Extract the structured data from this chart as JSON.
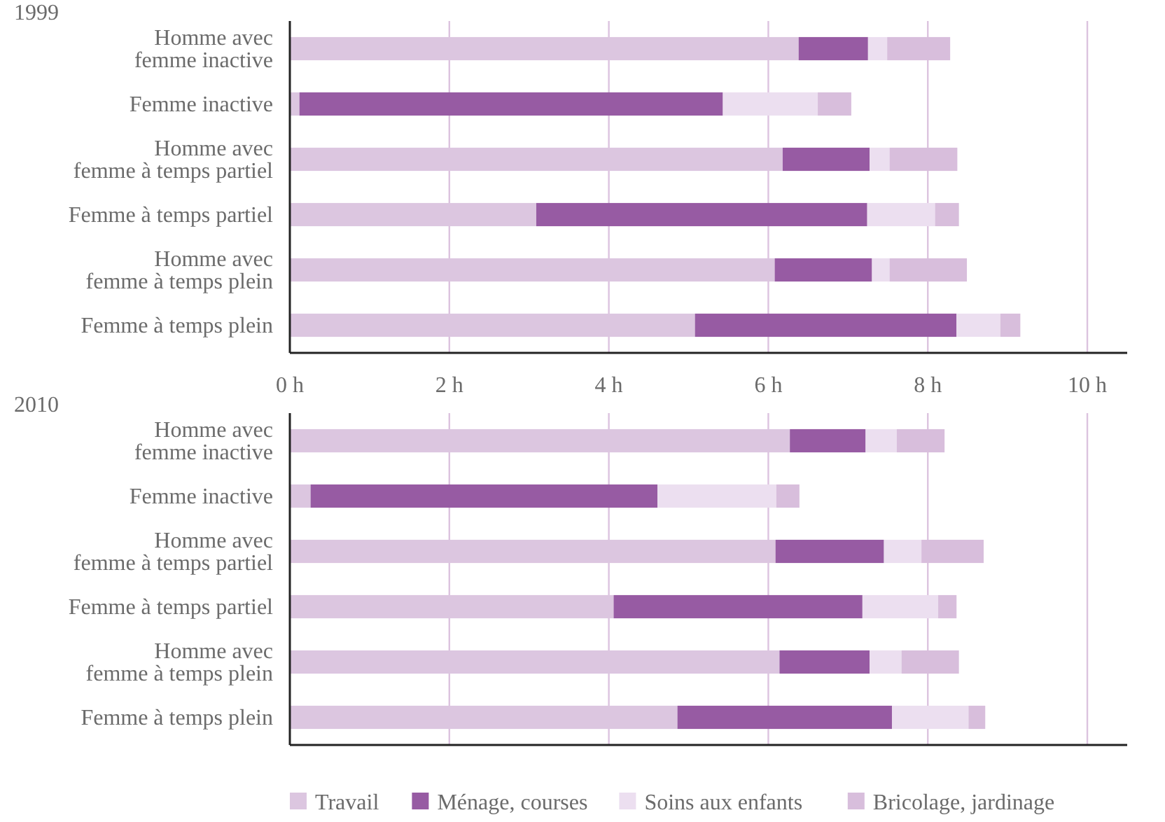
{
  "chart_data": [
    {
      "type": "bar",
      "title": "1999",
      "orientation": "horizontal",
      "stacked": true,
      "categories": [
        "Homme avec femme inactive",
        "Femme inactive",
        "Homme avec femme à temps partiel",
        "Femme à temps partiel",
        "Homme avec femme à temps plein",
        "Femme à temps plein"
      ],
      "series": [
        {
          "color": "#dcc6e0",
          "values": [
            6.38,
            0.12,
            6.18,
            3.09,
            6.08,
            5.08
          ]
        },
        {
          "color": "#975ba3",
          "values": [
            0.87,
            5.31,
            1.09,
            4.15,
            1.22,
            3.28
          ]
        },
        {
          "color": "#ecdff0",
          "values": [
            0.24,
            1.19,
            0.25,
            0.85,
            0.22,
            0.55
          ]
        },
        {
          "color": "#d8bedc",
          "values": [
            0.79,
            0.42,
            0.85,
            0.3,
            0.97,
            0.25
          ]
        }
      ],
      "xlim": [
        0,
        10.5
      ],
      "xticks": [
        {
          "value": 0,
          "label": "0 h"
        },
        {
          "value": 2,
          "label": "2 h"
        },
        {
          "value": 4,
          "label": "4 h"
        },
        {
          "value": 6,
          "label": "6 h"
        },
        {
          "value": 8,
          "label": "8 h"
        },
        {
          "value": 10,
          "label": "10 h"
        }
      ],
      "grid": "x"
    },
    {
      "type": "bar",
      "title": "2010",
      "orientation": "horizontal",
      "stacked": true,
      "categories": [
        "Homme avec femme inactive",
        "Femme inactive",
        "Homme avec femme à temps partiel",
        "Femme à temps partiel",
        "Homme avec femme à temps plein",
        "Femme à temps plein"
      ],
      "series": [
        {
          "name": "Travail",
          "color": "#dcc6e0",
          "values": [
            6.27,
            0.26,
            6.09,
            4.06,
            6.14,
            4.86
          ]
        },
        {
          "name": "Ménage, courses",
          "color": "#975ba3",
          "values": [
            0.95,
            4.35,
            1.36,
            3.12,
            1.13,
            2.69
          ]
        },
        {
          "name": "Soins aux enfants",
          "color": "#ecdff0",
          "values": [
            0.39,
            1.49,
            0.47,
            0.95,
            0.4,
            0.96
          ]
        },
        {
          "name": "Bricolage, jardinage",
          "color": "#d8bedc",
          "values": [
            0.6,
            0.29,
            0.78,
            0.23,
            0.72,
            0.21
          ]
        }
      ],
      "xlim": [
        0,
        10.5
      ],
      "xticks": [
        0,
        2,
        4,
        6,
        8,
        10
      ],
      "grid": "x",
      "tick_labels": "y",
      "legend": "bottom"
    }
  ]
}
